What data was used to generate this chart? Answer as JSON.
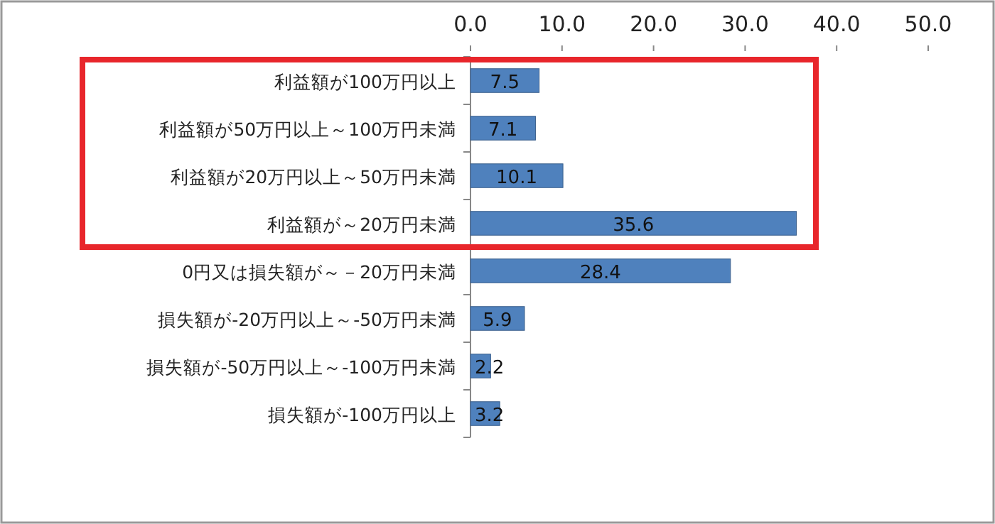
{
  "chart_data": {
    "type": "bar",
    "orientation": "horizontal",
    "categories": [
      "利益額が100万円以上",
      "利益額が50万円以上～100万円未満",
      "利益額が20万円以上～50万円未満",
      "利益額が～20万円未満",
      "0円又は損失額が～－20万円未満",
      "損失額が-20万円以上～-50万円未満",
      "損失額が-50万円以上～-100万円未満",
      "損失額が-100万円以上"
    ],
    "values": [
      7.5,
      7.1,
      10.1,
      35.6,
      28.4,
      5.9,
      2.2,
      3.2
    ],
    "color": "#4f81bd",
    "xlim": [
      0,
      50
    ],
    "xticks": [
      {
        "value": 0,
        "label": "0.0"
      },
      {
        "value": 10,
        "label": "10.0"
      },
      {
        "value": 20,
        "label": "20.0"
      },
      {
        "value": 30,
        "label": "30.0"
      },
      {
        "value": 40,
        "label": "40.0"
      },
      {
        "value": 50,
        "label": "50.0"
      }
    ],
    "data_labels": true,
    "grid": false
  }
}
